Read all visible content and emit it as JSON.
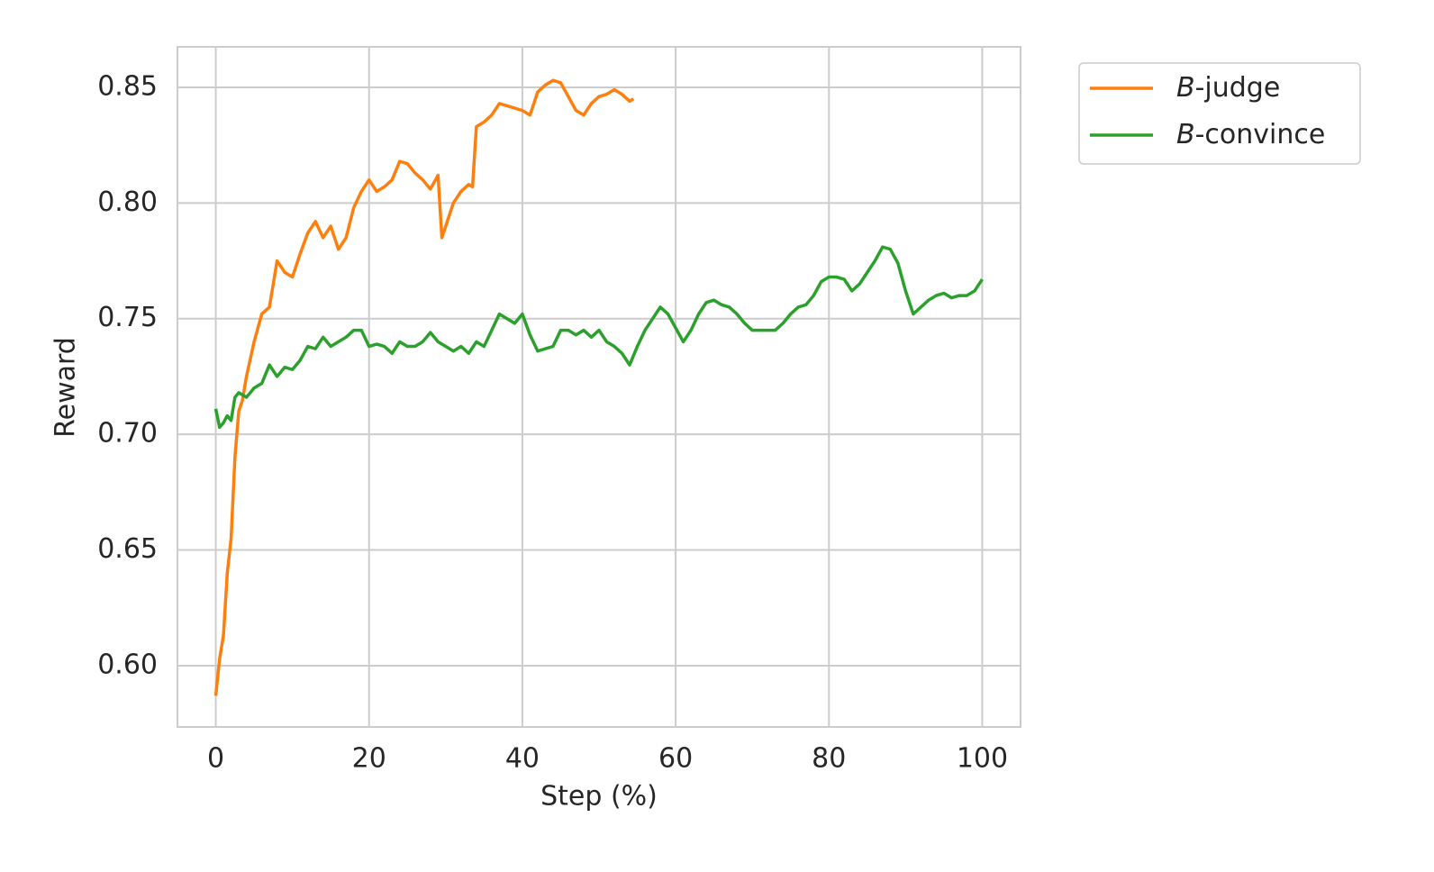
{
  "chart_data": {
    "type": "line",
    "xlabel": "Step (%)",
    "ylabel": "Reward",
    "xlim": [
      -5,
      105
    ],
    "xticks": [
      0,
      20,
      40,
      60,
      80,
      100
    ],
    "ylim": [
      0.5735,
      0.8675
    ],
    "yticks": [
      {
        "value": 0.6,
        "label": "0.60"
      },
      {
        "value": 0.65,
        "label": "0.65"
      },
      {
        "value": 0.7,
        "label": "0.70"
      },
      {
        "value": 0.75,
        "label": "0.75"
      },
      {
        "value": 0.8,
        "label": "0.80"
      },
      {
        "value": 0.85,
        "label": "0.85"
      }
    ],
    "grid": true,
    "legend": "outside upper right",
    "series": [
      {
        "name": "B-judge",
        "color": "#ff7f0e",
        "x": [
          0,
          0.5,
          1,
          1.5,
          2,
          2.5,
          3,
          3.5,
          4,
          5,
          6,
          7,
          8,
          9,
          10,
          11,
          12,
          13,
          14,
          15,
          16,
          17,
          18,
          19,
          20,
          21,
          22,
          23,
          24,
          25,
          26,
          27,
          28,
          29,
          29.5,
          30,
          31,
          32,
          33,
          33.5,
          34,
          35,
          36,
          37,
          38,
          39,
          40,
          41,
          42,
          43,
          44,
          45,
          46,
          47,
          48,
          49,
          50,
          51,
          52,
          53,
          54,
          54.5
        ],
        "values": [
          0.587,
          0.603,
          0.613,
          0.64,
          0.655,
          0.69,
          0.71,
          0.715,
          0.725,
          0.74,
          0.752,
          0.755,
          0.775,
          0.77,
          0.768,
          0.778,
          0.787,
          0.792,
          0.785,
          0.79,
          0.78,
          0.785,
          0.798,
          0.805,
          0.81,
          0.805,
          0.807,
          0.81,
          0.818,
          0.817,
          0.813,
          0.81,
          0.806,
          0.812,
          0.785,
          0.79,
          0.8,
          0.805,
          0.808,
          0.807,
          0.833,
          0.835,
          0.838,
          0.843,
          0.842,
          0.841,
          0.84,
          0.838,
          0.848,
          0.851,
          0.853,
          0.852,
          0.846,
          0.84,
          0.838,
          0.843,
          0.846,
          0.847,
          0.849,
          0.847,
          0.844,
          0.845
        ]
      },
      {
        "name": "B-convince",
        "color": "#2ca02c",
        "x": [
          0,
          0.5,
          1,
          1.5,
          2,
          2.5,
          3,
          4,
          5,
          6,
          7,
          8,
          9,
          10,
          11,
          12,
          13,
          14,
          15,
          16,
          17,
          18,
          19,
          20,
          21,
          22,
          23,
          24,
          25,
          26,
          27,
          28,
          29,
          30,
          31,
          32,
          33,
          34,
          35,
          36,
          37,
          38,
          39,
          40,
          41,
          42,
          43,
          44,
          45,
          46,
          47,
          48,
          49,
          50,
          51,
          52,
          53,
          54,
          55,
          56,
          57,
          58,
          59,
          60,
          61,
          62,
          63,
          64,
          65,
          66,
          67,
          68,
          69,
          70,
          71,
          72,
          73,
          74,
          75,
          76,
          77,
          78,
          79,
          80,
          81,
          82,
          83,
          84,
          85,
          86,
          87,
          88,
          89,
          90,
          91,
          92,
          93,
          94,
          95,
          96,
          97,
          98,
          99,
          100
        ],
        "values": [
          0.711,
          0.703,
          0.705,
          0.708,
          0.706,
          0.716,
          0.718,
          0.716,
          0.72,
          0.722,
          0.73,
          0.725,
          0.729,
          0.728,
          0.732,
          0.738,
          0.737,
          0.742,
          0.738,
          0.74,
          0.742,
          0.745,
          0.745,
          0.738,
          0.739,
          0.738,
          0.735,
          0.74,
          0.738,
          0.738,
          0.74,
          0.744,
          0.74,
          0.738,
          0.736,
          0.738,
          0.735,
          0.74,
          0.738,
          0.745,
          0.752,
          0.75,
          0.748,
          0.752,
          0.743,
          0.736,
          0.737,
          0.738,
          0.745,
          0.745,
          0.743,
          0.745,
          0.742,
          0.745,
          0.74,
          0.738,
          0.735,
          0.73,
          0.738,
          0.745,
          0.75,
          0.755,
          0.752,
          0.746,
          0.74,
          0.745,
          0.752,
          0.757,
          0.758,
          0.756,
          0.755,
          0.752,
          0.748,
          0.745,
          0.745,
          0.745,
          0.745,
          0.748,
          0.752,
          0.755,
          0.756,
          0.76,
          0.766,
          0.768,
          0.768,
          0.767,
          0.762,
          0.765,
          0.77,
          0.775,
          0.781,
          0.78,
          0.774,
          0.762,
          0.752,
          0.755,
          0.758,
          0.76,
          0.761,
          0.759,
          0.76,
          0.76,
          0.762,
          0.767
        ]
      }
    ]
  }
}
